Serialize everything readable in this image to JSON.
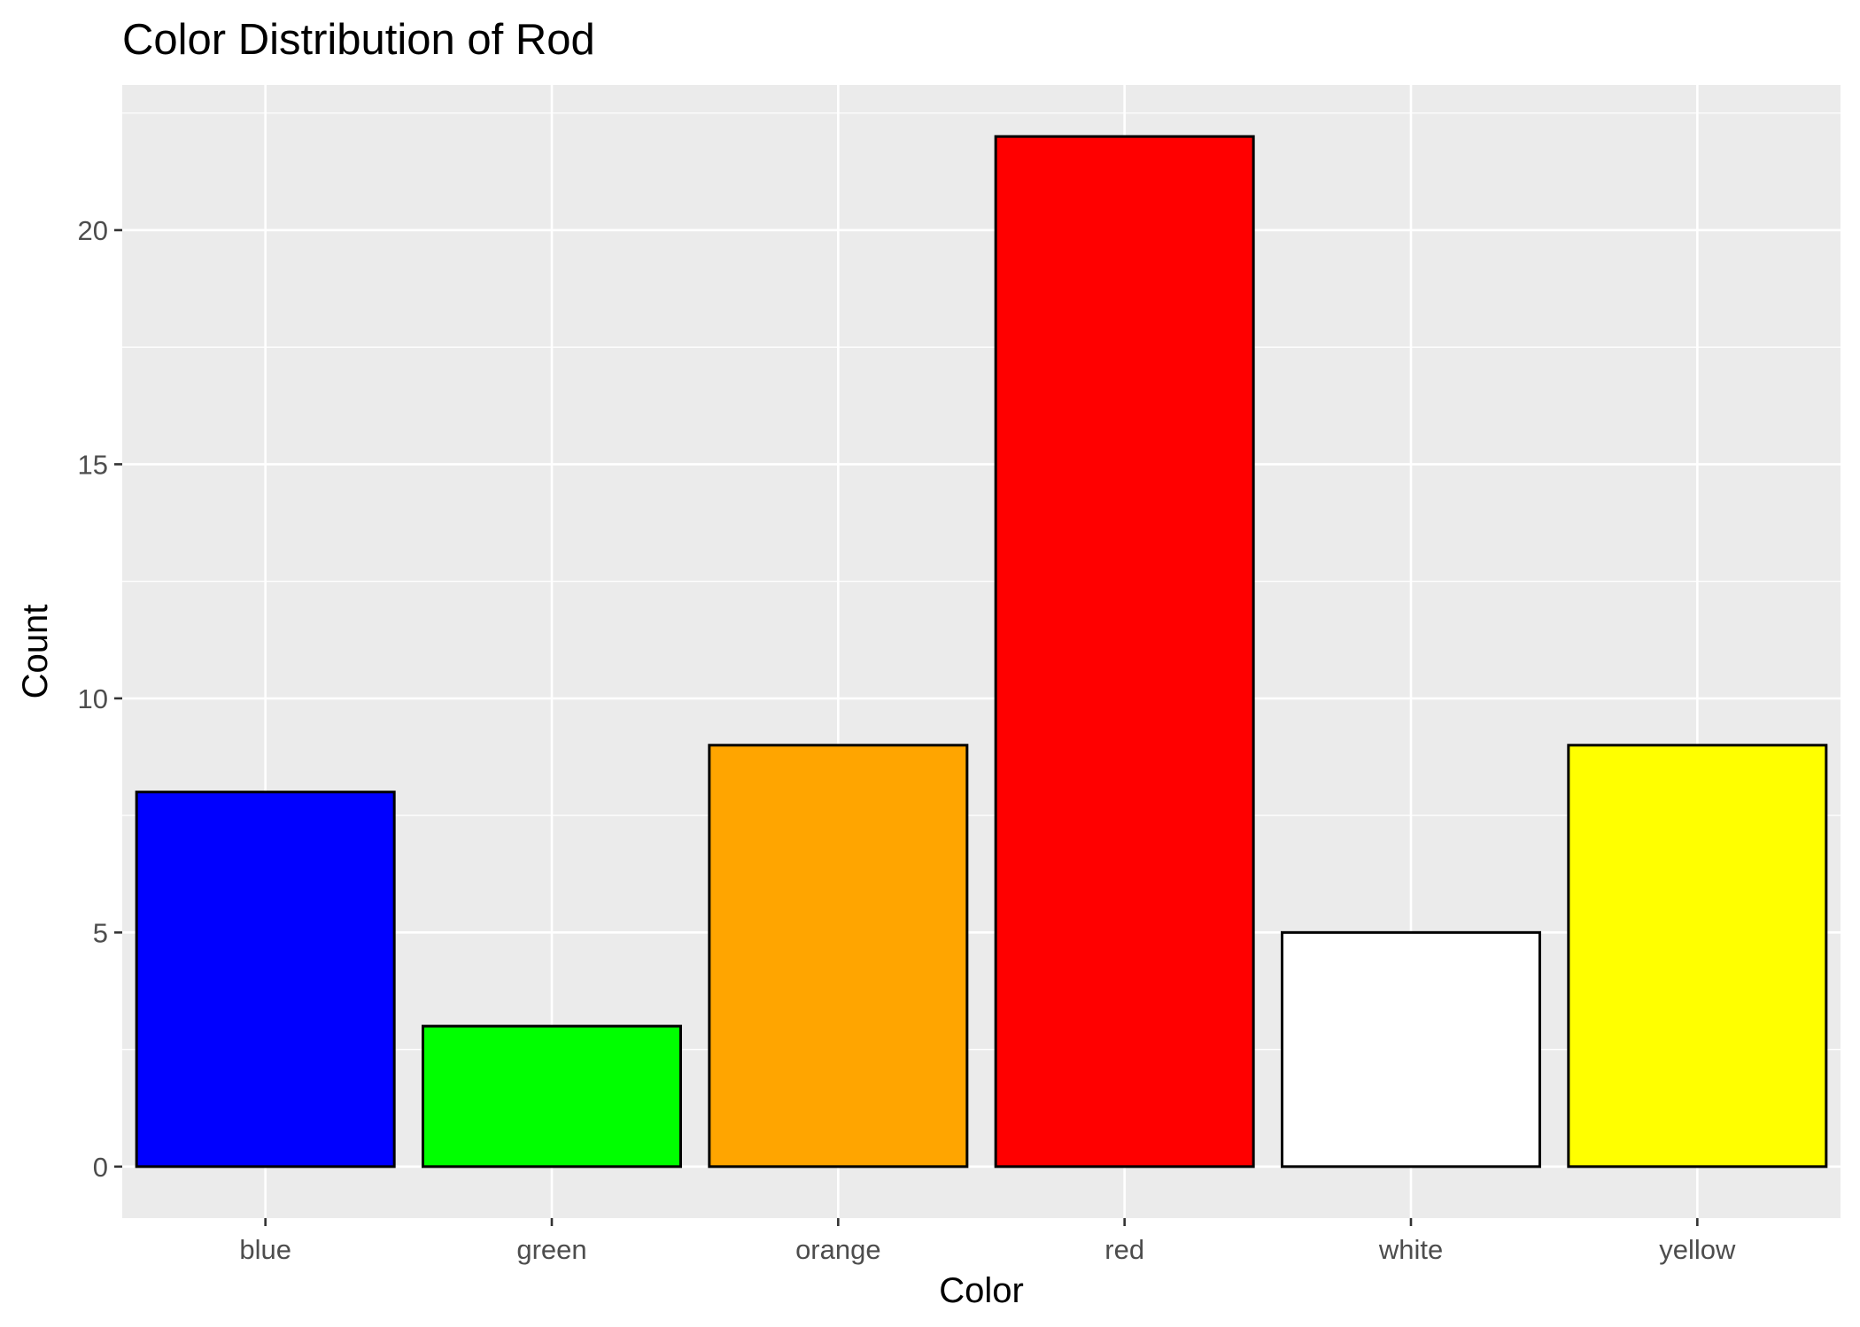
{
  "chart_data": {
    "type": "bar",
    "title": "Color Distribution of Rod",
    "xlabel": "Color",
    "ylabel": "Count",
    "categories": [
      "blue",
      "green",
      "orange",
      "red",
      "white",
      "yellow"
    ],
    "values": [
      8,
      3,
      9,
      22,
      5,
      9
    ],
    "bar_colors": [
      "#0000ff",
      "#00ff00",
      "#ffa500",
      "#ff0000",
      "#ffffff",
      "#ffff00"
    ],
    "bar_outline": "#000000",
    "panel_background": "#ebebeb",
    "grid_color": "#ffffff",
    "ylim": [
      -1.1,
      23.1
    ],
    "yticks": [
      0,
      5,
      10,
      15,
      20
    ],
    "ytick_labels": [
      "0",
      "5",
      "10",
      "15",
      "20"
    ],
    "grid": true,
    "legend": "none"
  }
}
